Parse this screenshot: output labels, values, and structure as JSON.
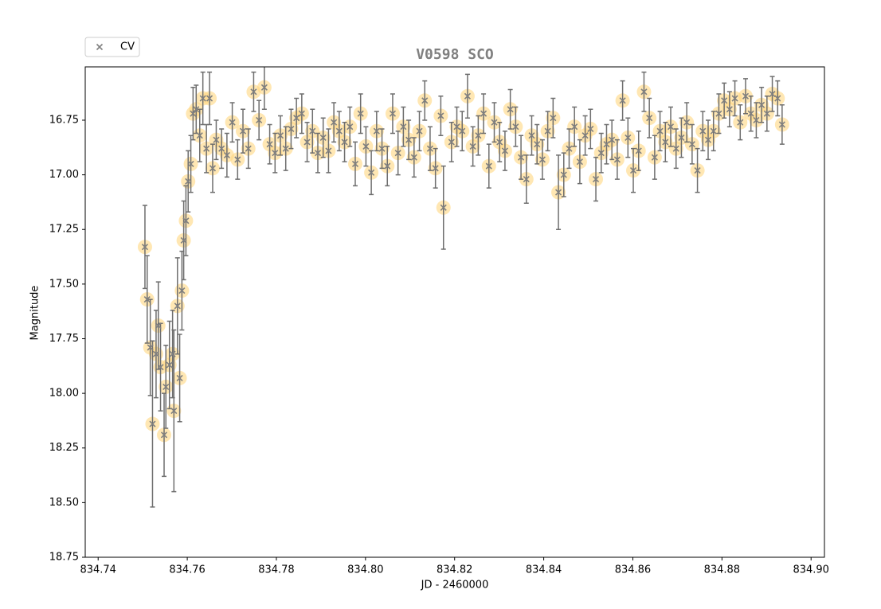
{
  "chart_data": {
    "type": "scatter",
    "title": "V0598 SCO",
    "xlabel": "JD - 2460000",
    "ylabel": "Magnitude",
    "xlim": [
      834.7371,
      834.903
    ],
    "ylim": [
      16.506,
      18.75
    ],
    "invert_y": true,
    "xticks": [
      834.74,
      834.76,
      834.78,
      {
        "value": 834.8,
        "label": "834.80"
      },
      834.82,
      834.84,
      834.86,
      834.88,
      {
        "value": 834.9,
        "label": "834.90"
      }
    ],
    "yticks": [
      16.75,
      {
        "value": 17,
        "label": "17.00"
      },
      17.25,
      {
        "value": 17.5,
        "label": "17.50"
      },
      17.75,
      {
        "value": 18,
        "label": "18.00"
      },
      18.25,
      {
        "value": 18.5,
        "label": "18.50"
      },
      18.75
    ],
    "legend": "upper left outside",
    "series": [
      {
        "name": "CV",
        "color": "#808080",
        "highlight_color": "#ffd780",
        "x": [
          834.7505,
          834.751,
          834.7517,
          834.7522,
          834.753,
          834.7535,
          834.754,
          834.7548,
          834.7552,
          834.756,
          834.7567,
          834.757,
          834.7578,
          834.7583,
          834.7588,
          834.7592,
          834.7597,
          834.7602,
          834.7608,
          834.7613,
          834.762,
          834.7628,
          834.7635,
          834.7643,
          834.765,
          834.7657,
          834.7665,
          834.7677,
          834.7689,
          834.7701,
          834.7713,
          834.7725,
          834.7737,
          834.7749,
          834.7761,
          834.7773,
          834.7785,
          834.7797,
          834.7809,
          834.7821,
          834.7833,
          834.7845,
          834.7857,
          834.7869,
          834.7881,
          834.7893,
          834.7905,
          834.7917,
          834.7929,
          834.7941,
          834.7953,
          834.7965,
          834.7977,
          834.7989,
          834.8001,
          834.8013,
          834.8025,
          834.8037,
          834.8049,
          834.8061,
          834.8073,
          834.8085,
          834.8097,
          834.8109,
          834.8121,
          834.8133,
          834.8145,
          834.8157,
          834.8169,
          834.8175,
          834.8193,
          834.8205,
          834.8217,
          834.8229,
          834.8241,
          834.8253,
          834.8265,
          834.8277,
          834.8289,
          834.8301,
          834.8313,
          834.8325,
          834.8337,
          834.8349,
          834.8361,
          834.8373,
          834.8385,
          834.8397,
          834.8409,
          834.8421,
          834.8433,
          834.8445,
          834.8457,
          834.8469,
          834.8481,
          834.8493,
          834.8505,
          834.8517,
          834.8529,
          834.8541,
          834.8553,
          834.8565,
          834.8577,
          834.8589,
          834.8601,
          834.8613,
          834.8625,
          834.8637,
          834.8649,
          834.8661,
          834.8673,
          834.8685,
          834.8697,
          834.8709,
          834.8721,
          834.8733,
          834.8745,
          834.8757,
          834.8769,
          834.8781,
          834.8793,
          834.8805,
          834.8817,
          834.8829,
          834.8841,
          834.8853,
          834.8865,
          834.8877,
          834.8889,
          834.8901,
          834.8913,
          834.8925,
          834.8935
        ],
        "values": [
          17.33,
          17.57,
          17.79,
          18.14,
          17.82,
          17.69,
          17.88,
          18.19,
          17.97,
          17.87,
          17.82,
          18.08,
          17.6,
          17.93,
          17.53,
          17.3,
          17.21,
          17.03,
          16.95,
          16.72,
          16.7,
          16.82,
          16.65,
          16.88,
          16.65,
          16.97,
          16.84,
          16.88,
          16.91,
          16.76,
          16.93,
          16.8,
          16.88,
          16.62,
          16.75,
          16.6,
          16.86,
          16.9,
          16.82,
          16.88,
          16.79,
          16.74,
          16.72,
          16.85,
          16.8,
          16.9,
          16.83,
          16.89,
          16.76,
          16.8,
          16.85,
          16.78,
          16.95,
          16.72,
          16.87,
          16.99,
          16.8,
          16.88,
          16.96,
          16.72,
          16.9,
          16.78,
          16.84,
          16.92,
          16.8,
          16.66,
          16.88,
          16.97,
          16.73,
          17.15,
          16.85,
          16.78,
          16.8,
          16.64,
          16.87,
          16.82,
          16.72,
          16.96,
          16.76,
          16.85,
          16.89,
          16.7,
          16.78,
          16.92,
          17.02,
          16.82,
          16.86,
          16.93,
          16.8,
          16.74,
          17.08,
          17.0,
          16.88,
          16.78,
          16.94,
          16.82,
          16.79,
          17.02,
          16.9,
          16.86,
          16.84,
          16.93,
          16.66,
          16.83,
          16.98,
          16.89,
          16.62,
          16.74,
          16.92,
          16.8,
          16.85,
          16.78,
          16.88,
          16.83,
          16.76,
          16.86,
          16.98,
          16.8,
          16.84,
          16.8,
          16.72,
          16.66,
          16.7,
          16.65,
          16.76,
          16.64,
          16.72,
          16.75,
          16.68,
          16.72,
          16.63,
          16.65,
          16.77
        ],
        "errors": [
          0.19,
          0.2,
          0.22,
          0.38,
          0.2,
          0.2,
          0.2,
          0.19,
          0.19,
          0.2,
          0.2,
          0.37,
          0.22,
          0.2,
          0.18,
          0.18,
          0.16,
          0.14,
          0.13,
          0.12,
          0.11,
          0.12,
          0.12,
          0.11,
          0.12,
          0.11,
          0.09,
          0.09,
          0.1,
          0.09,
          0.09,
          0.1,
          0.09,
          0.09,
          0.09,
          0.1,
          0.09,
          0.09,
          0.09,
          0.1,
          0.09,
          0.09,
          0.09,
          0.09,
          0.1,
          0.09,
          0.09,
          0.1,
          0.09,
          0.09,
          0.09,
          0.09,
          0.1,
          0.09,
          0.09,
          0.1,
          0.09,
          0.09,
          0.09,
          0.09,
          0.1,
          0.09,
          0.09,
          0.09,
          0.09,
          0.09,
          0.1,
          0.09,
          0.09,
          0.19,
          0.09,
          0.09,
          0.09,
          0.1,
          0.09,
          0.09,
          0.09,
          0.1,
          0.09,
          0.09,
          0.09,
          0.09,
          0.09,
          0.1,
          0.11,
          0.09,
          0.09,
          0.09,
          0.09,
          0.09,
          0.17,
          0.1,
          0.09,
          0.09,
          0.1,
          0.09,
          0.09,
          0.1,
          0.09,
          0.09,
          0.09,
          0.09,
          0.09,
          0.09,
          0.1,
          0.09,
          0.09,
          0.09,
          0.1,
          0.09,
          0.09,
          0.09,
          0.09,
          0.09,
          0.09,
          0.09,
          0.1,
          0.09,
          0.09,
          0.09,
          0.09,
          0.08,
          0.08,
          0.08,
          0.08,
          0.08,
          0.08,
          0.08,
          0.08,
          0.08,
          0.08,
          0.08,
          0.09
        ]
      }
    ]
  }
}
